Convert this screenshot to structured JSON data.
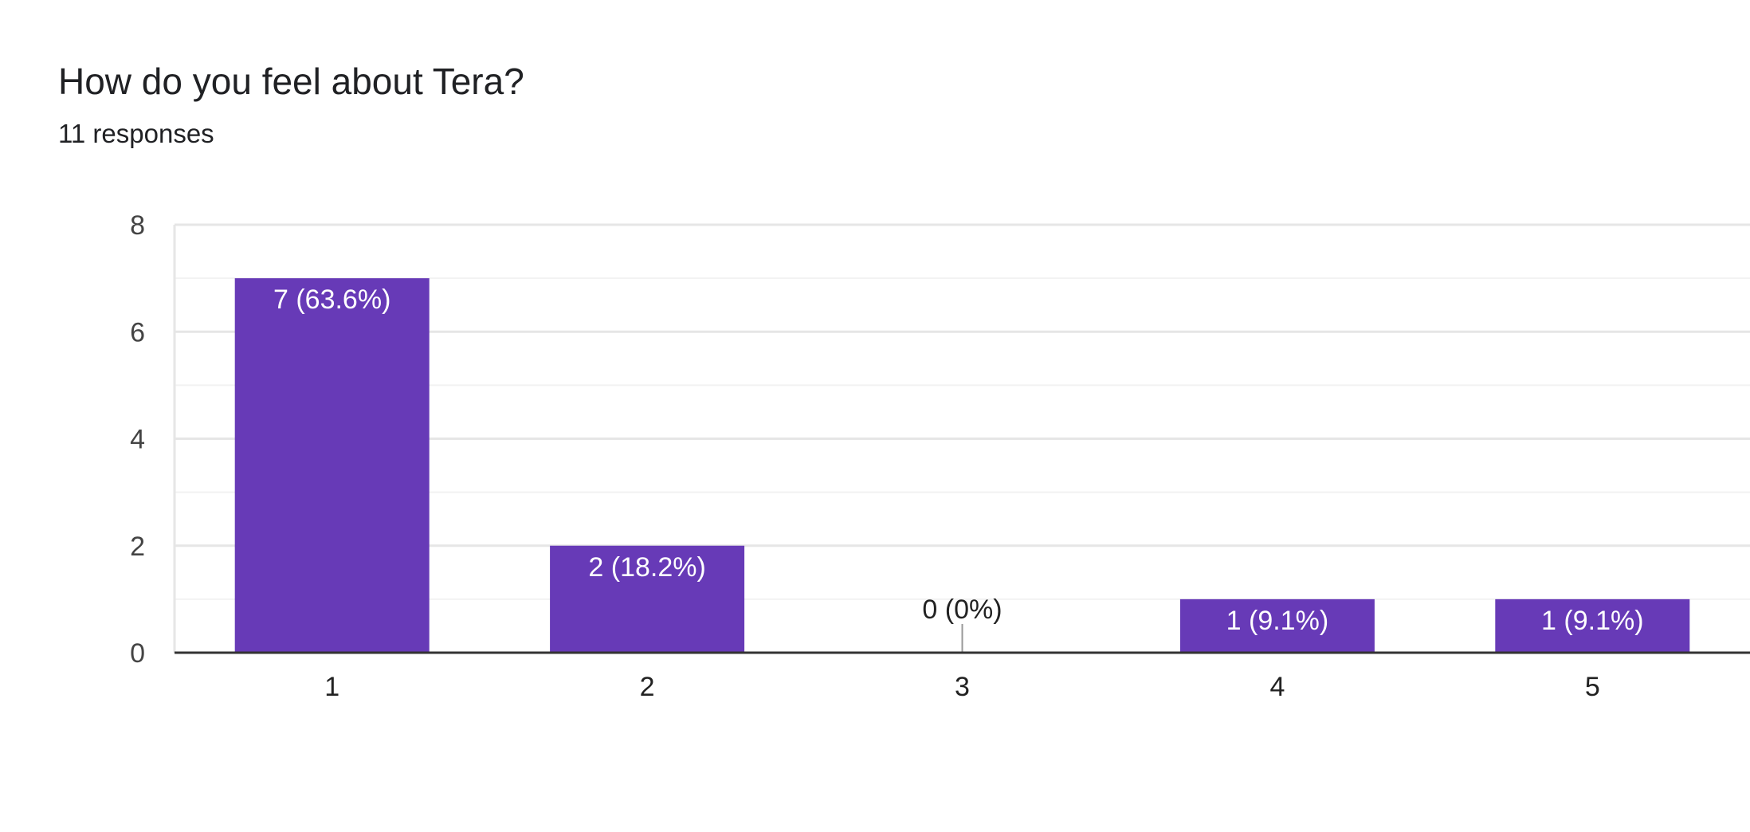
{
  "header": {
    "question": "How do you feel about Tera?",
    "responses": "11 responses"
  },
  "colors": {
    "bar": "#673ab7",
    "grid_major": "#e6e6e6",
    "grid_minor": "#f2f2f2",
    "axis": "#333333"
  },
  "chart_data": {
    "type": "bar",
    "title": "How do you feel about Tera?",
    "subtitle": "11 responses",
    "xlabel": "",
    "ylabel": "",
    "categories": [
      "1",
      "2",
      "3",
      "4",
      "5"
    ],
    "values": [
      7,
      2,
      0,
      1,
      1
    ],
    "data_labels": [
      "7 (63.6%)",
      "2 (18.2%)",
      "0 (0%)",
      "1 (9.1%)",
      "1 (9.1%)"
    ],
    "ylim": [
      0,
      8
    ],
    "yticks": [
      0,
      2,
      4,
      6,
      8
    ],
    "grid": true,
    "legend": "none"
  }
}
